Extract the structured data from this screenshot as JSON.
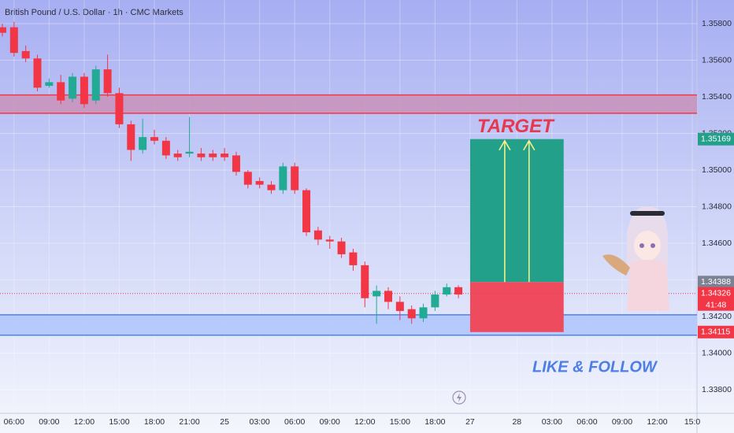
{
  "chart_data": {
    "type": "candlestick",
    "title": "British Pound / U.S. Dollar · 1h · CMC Markets",
    "x": [
      0,
      1,
      2,
      3,
      4,
      5,
      6,
      7,
      8,
      9,
      10,
      11,
      12,
      13,
      14,
      15,
      16,
      17,
      18,
      19,
      20,
      21,
      22,
      23,
      24,
      25,
      26,
      27,
      28,
      29,
      30,
      31,
      32,
      33,
      34,
      35,
      36,
      37,
      38,
      39
    ],
    "open": [
      1.3578,
      1.3578,
      1.3565,
      1.3561,
      1.3546,
      1.3548,
      1.3539,
      1.3551,
      1.3538,
      1.3555,
      1.3542,
      1.3525,
      1.3511,
      1.3518,
      1.3516,
      1.3509,
      1.3509,
      1.3509,
      1.3509,
      1.3509,
      1.3508,
      1.3499,
      1.3494,
      1.3492,
      1.3489,
      1.3502,
      1.3489,
      1.3467,
      1.3462,
      1.3461,
      1.3455,
      1.3448,
      1.3431,
      1.3434,
      1.3428,
      1.3424,
      1.3419,
      1.3425,
      1.3432,
      1.3436
    ],
    "high": [
      1.358,
      1.3581,
      1.3568,
      1.3563,
      1.355,
      1.3552,
      1.3553,
      1.3553,
      1.3557,
      1.3563,
      1.3545,
      1.3527,
      1.3528,
      1.3522,
      1.3518,
      1.3511,
      1.3529,
      1.3512,
      1.3511,
      1.3512,
      1.351,
      1.35,
      1.3496,
      1.3494,
      1.3504,
      1.3504,
      1.349,
      1.3469,
      1.3464,
      1.3463,
      1.3457,
      1.345,
      1.3437,
      1.3436,
      1.3431,
      1.3426,
      1.3427,
      1.3434,
      1.3438,
      1.3437
    ],
    "low": [
      1.3573,
      1.3562,
      1.3559,
      1.3543,
      1.3545,
      1.3536,
      1.3537,
      1.3534,
      1.3536,
      1.354,
      1.3523,
      1.3505,
      1.3509,
      1.3514,
      1.3506,
      1.3505,
      1.3507,
      1.3505,
      1.3505,
      1.3505,
      1.3497,
      1.349,
      1.349,
      1.3487,
      1.3487,
      1.3487,
      1.3464,
      1.3459,
      1.3457,
      1.3452,
      1.3445,
      1.3425,
      1.3416,
      1.3424,
      1.3418,
      1.3416,
      1.3417,
      1.3423,
      1.3431,
      1.343
    ],
    "close": [
      1.3575,
      1.3564,
      1.3561,
      1.3545,
      1.3548,
      1.3538,
      1.3551,
      1.3536,
      1.3555,
      1.3542,
      1.3525,
      1.3511,
      1.3518,
      1.3516,
      1.3508,
      1.3507,
      1.351,
      1.3507,
      1.3507,
      1.3507,
      1.3499,
      1.3492,
      1.3492,
      1.3489,
      1.3502,
      1.3489,
      1.3466,
      1.3462,
      1.3461,
      1.3454,
      1.3448,
      1.343,
      1.3434,
      1.3428,
      1.3423,
      1.3419,
      1.3425,
      1.3432,
      1.3436,
      1.3432
    ],
    "up_color": "#22ab94",
    "down_color": "#f23645",
    "xlim": [
      -0.2,
      59.4
    ],
    "xticks": [
      {
        "value": 1,
        "label": "06:00"
      },
      {
        "value": 4,
        "label": "09:00"
      },
      {
        "value": 7,
        "label": "12:00"
      },
      {
        "value": 10,
        "label": "15:00"
      },
      {
        "value": 13,
        "label": "18:00"
      },
      {
        "value": 16,
        "label": "21:00"
      },
      {
        "value": 19,
        "label": "25"
      },
      {
        "value": 22,
        "label": "03:00"
      },
      {
        "value": 25,
        "label": "06:00"
      },
      {
        "value": 28,
        "label": "09:00"
      },
      {
        "value": 31,
        "label": "12:00"
      },
      {
        "value": 34,
        "label": "15:00"
      },
      {
        "value": 37,
        "label": "18:00"
      },
      {
        "value": 40,
        "label": "27"
      },
      {
        "value": 44,
        "label": "28"
      },
      {
        "value": 47,
        "label": "03:00"
      },
      {
        "value": 50,
        "label": "06:00"
      },
      {
        "value": 53,
        "label": "09:00"
      },
      {
        "value": 56,
        "label": "12:00"
      },
      {
        "value": 59,
        "label": "15:0"
      }
    ],
    "ylim": [
      1.33671,
      1.35929
    ],
    "yticks": [
      {
        "value": 1.338,
        "label": "1.33800"
      },
      {
        "value": 1.34,
        "label": "1.34000"
      },
      {
        "value": 1.342,
        "label": "1.34200"
      },
      {
        "value": 1.344,
        "label": "1.34400"
      },
      {
        "value": 1.346,
        "label": "1.34600"
      },
      {
        "value": 1.348,
        "label": "1.34800"
      },
      {
        "value": 1.35,
        "label": "1.35000"
      },
      {
        "value": 1.352,
        "label": "1.35200"
      },
      {
        "value": 1.354,
        "label": "1.35400"
      },
      {
        "value": 1.356,
        "label": "1.35600"
      },
      {
        "value": 1.358,
        "label": "1.35800"
      }
    ],
    "zones": [
      {
        "from": 1.3531,
        "to": 1.3541,
        "color": "#c990b8",
        "edge": "#f23645"
      },
      {
        "from": 1.34098,
        "to": 1.34209,
        "color": "#aec4fb",
        "edge": "#4f7ff0"
      }
    ],
    "position": {
      "x_start": 40,
      "x_end": 48,
      "entry": 1.34388,
      "target": 1.35169,
      "stop": 1.34115,
      "target_color": "#22a08a",
      "stop_color": "#ef4b5e"
    },
    "last_price": 1.34326,
    "countdown": "41:48",
    "annotations": {
      "target": "TARGET",
      "cta": "LIKE & FOLLOW"
    }
  }
}
